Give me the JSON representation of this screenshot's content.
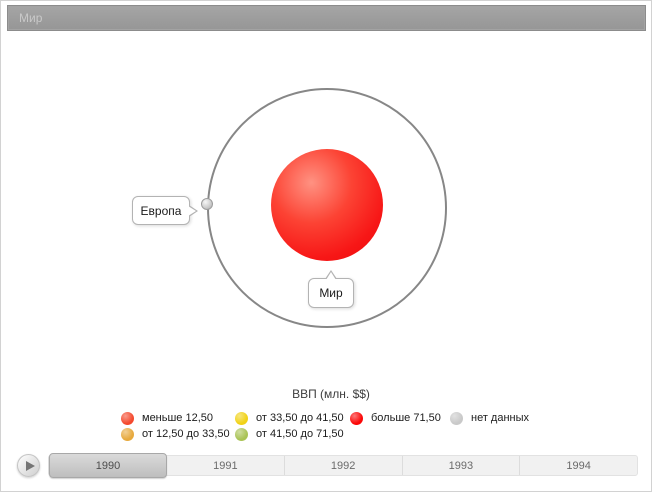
{
  "header": {
    "breadcrumb": "Мир"
  },
  "chart": {
    "center_label": "Мир",
    "orbit_node_label": "Европа"
  },
  "legend": {
    "title": "ВВП (млн. $$)",
    "items": [
      {
        "label": "меньше 12,50",
        "color": "#f4492e"
      },
      {
        "label": "от 33,50 до 41,50",
        "color": "#f1d216"
      },
      {
        "label": "больше 71,50",
        "color": "#fb0707"
      },
      {
        "label": "нет данных",
        "color": "#c9c9c9"
      },
      {
        "label": "от 12,50 до 33,50",
        "color": "#e7a93d"
      },
      {
        "label": "от 41,50 до 71,50",
        "color": "#a9c355"
      }
    ]
  },
  "timeline": {
    "years": [
      "1990",
      "1991",
      "1992",
      "1993",
      "1994"
    ],
    "selected": "1990"
  },
  "chart_data": {
    "type": "scatter",
    "subtype": "hierarchical-bubble",
    "title": "ВВП (млн. $$)",
    "legend_position": "bottom",
    "bins": [
      {
        "label": "меньше 12,50",
        "color": "#f4492e"
      },
      {
        "label": "от 12,50 до 33,50",
        "color": "#e7a93d"
      },
      {
        "label": "от 33,50 до 41,50",
        "color": "#f1d216"
      },
      {
        "label": "от 41,50 до 71,50",
        "color": "#a9c355"
      },
      {
        "label": "больше 71,50",
        "color": "#fb0707"
      },
      {
        "label": "нет данных",
        "color": "#c9c9c9"
      }
    ],
    "nodes": [
      {
        "name": "Мир",
        "role": "center-bubble",
        "bin": "больше 71,50"
      },
      {
        "name": "Европа",
        "role": "orbit-node",
        "bin": "нет данных"
      }
    ],
    "timeline": {
      "years": [
        "1990",
        "1991",
        "1992",
        "1993",
        "1994"
      ],
      "selected": "1990"
    }
  }
}
